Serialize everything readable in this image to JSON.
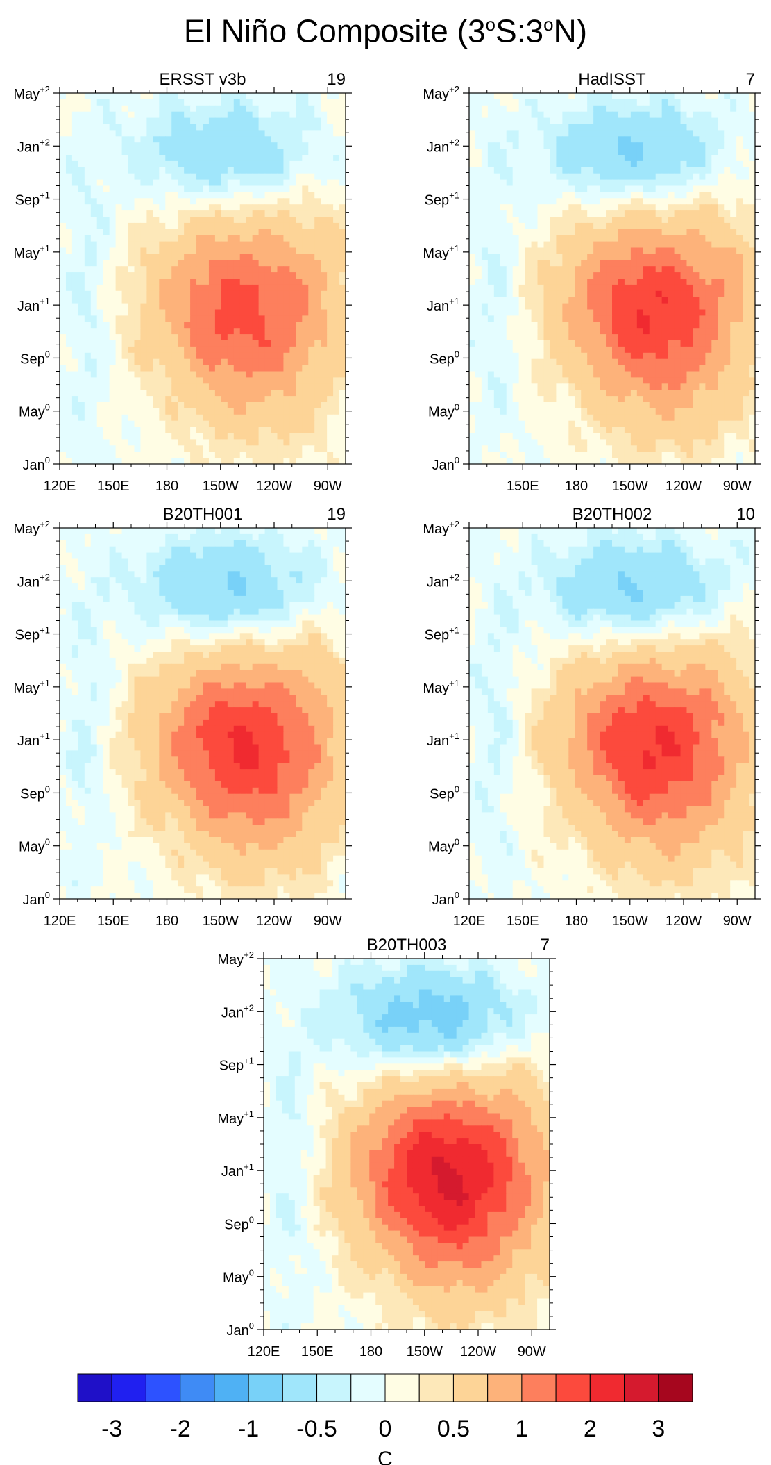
{
  "title": {
    "pre": "El Niño Composite (3",
    "sup1": "o",
    "mid": "S:3",
    "sup2": "o",
    "post": "N)"
  },
  "colors": {
    "levels": [
      "#1f10c8",
      "#2020f0",
      "#2d52ff",
      "#3f8bf5",
      "#4fb1f4",
      "#78d1f8",
      "#a0e6fb",
      "#c8f5fd",
      "#e4fdff",
      "#fffde4",
      "#fde8b9",
      "#fdd497",
      "#fdb27a",
      "#fd7f5d",
      "#fc4a3d",
      "#f02a30",
      "#d51a2e",
      "#a6061e"
    ],
    "contour": "#7a7a7a"
  },
  "yticks": [
    {
      "m": "May",
      "s": "+2"
    },
    {
      "m": "Jan",
      "s": "+2"
    },
    {
      "m": "Sep",
      "s": "+1"
    },
    {
      "m": "May",
      "s": "+1"
    },
    {
      "m": "Jan",
      "s": "+1"
    },
    {
      "m": "Sep",
      "s": "0"
    },
    {
      "m": "May",
      "s": "0"
    },
    {
      "m": "Jan",
      "s": "0"
    }
  ],
  "xticks": [
    "120E",
    "150E",
    "180",
    "150W",
    "120W",
    "90W"
  ],
  "panels": [
    {
      "name": "ERSST v3b",
      "count": "19",
      "intensity": 0.62,
      "xlabels": true,
      "show120": true
    },
    {
      "name": "HadISST",
      "count": "7",
      "intensity": 0.7,
      "xlabels": true,
      "show120": false
    },
    {
      "name": "B20TH001",
      "count": "19",
      "intensity": 0.72,
      "xlabels": true,
      "show120": true
    },
    {
      "name": "B20TH002",
      "count": "10",
      "intensity": 0.72,
      "xlabels": true,
      "show120": true
    },
    {
      "name": "B20TH003",
      "count": "7",
      "intensity": 0.88,
      "xlabels": true,
      "show120": true
    }
  ],
  "colorbar": {
    "labels": [
      "-3",
      "-2",
      "-1",
      "-0.5",
      "0",
      "0.5",
      "1",
      "2",
      "3"
    ],
    "unit": "C"
  },
  "chart_data": {
    "type": "heatmap",
    "title": "El Niño Composite (3oS:3oN)",
    "x_axis": [
      "120E",
      "150E",
      "180",
      "150W",
      "120W",
      "90W"
    ],
    "y_axis": [
      "Jan0",
      "May0",
      "Sep0",
      "Jan+1",
      "May+1",
      "Sep+1",
      "Jan+2",
      "May+2"
    ],
    "panels": [
      "ERSST v3b",
      "HadISST",
      "B20TH001",
      "B20TH002",
      "B20TH003"
    ],
    "counts": [
      19,
      7,
      19,
      10,
      7
    ],
    "colorbar_levels": [
      -3,
      -2,
      -1,
      -0.5,
      0,
      0.5,
      1,
      2,
      3
    ],
    "units": "C"
  }
}
